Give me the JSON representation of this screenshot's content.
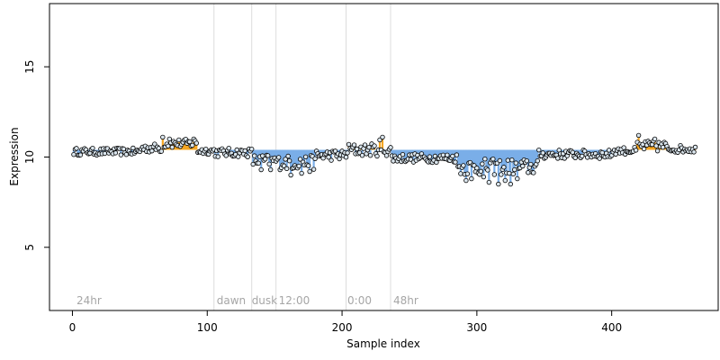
{
  "chart_data": {
    "type": "scatter",
    "xlabel": "Sample index",
    "ylabel": "Expression",
    "xlim": [
      -17,
      479
    ],
    "ylim": [
      1.5,
      18.5
    ],
    "x_ticks": [
      0,
      100,
      200,
      300,
      400
    ],
    "y_ticks": [
      5,
      10,
      15
    ],
    "grid": false,
    "baseline": 10.4,
    "colors": {
      "point_fill": "#dbe6ee",
      "up": "#f5a623",
      "down": "#7aaee8",
      "vertical_line": "#dcdcdc",
      "annotation": "#a6a6a6"
    },
    "vertical_lines": [
      105,
      133,
      151,
      203,
      236
    ],
    "annotations": [
      {
        "x": 3,
        "label": "24hr"
      },
      {
        "x": 107,
        "label": "dawn"
      },
      {
        "x": 133,
        "label": "dusk"
      },
      {
        "x": 153,
        "label": "12:00"
      },
      {
        "x": 204,
        "label": "0:00"
      },
      {
        "x": 238,
        "label": "48hr"
      }
    ],
    "segments": [
      {
        "start": 1,
        "end": 50,
        "level": 10.3,
        "amp": 0.2
      },
      {
        "start": 51,
        "end": 66,
        "level": 10.5,
        "amp": 0.25
      },
      {
        "start": 67,
        "end": 92,
        "level": 10.75,
        "amp": 0.25
      },
      {
        "start": 93,
        "end": 105,
        "level": 10.35,
        "amp": 0.2
      },
      {
        "start": 106,
        "end": 133,
        "level": 10.25,
        "amp": 0.25
      },
      {
        "start": 134,
        "end": 151,
        "level": 9.8,
        "amp": 0.35
      },
      {
        "start": 152,
        "end": 180,
        "level": 9.7,
        "amp": 0.4
      },
      {
        "start": 181,
        "end": 203,
        "level": 10.1,
        "amp": 0.3
      },
      {
        "start": 204,
        "end": 236,
        "level": 10.4,
        "amp": 0.35
      },
      {
        "start": 237,
        "end": 285,
        "level": 9.95,
        "amp": 0.25
      },
      {
        "start": 286,
        "end": 345,
        "level": 9.45,
        "amp": 0.45
      },
      {
        "start": 346,
        "end": 400,
        "level": 10.15,
        "amp": 0.25
      },
      {
        "start": 401,
        "end": 418,
        "level": 10.35,
        "amp": 0.2
      },
      {
        "start": 419,
        "end": 440,
        "level": 10.6,
        "amp": 0.3
      },
      {
        "start": 441,
        "end": 462,
        "level": 10.45,
        "amp": 0.2
      }
    ],
    "outliers": [
      {
        "x": 67,
        "y": 11.1
      },
      {
        "x": 72,
        "y": 11.0
      },
      {
        "x": 90,
        "y": 11.0
      },
      {
        "x": 140,
        "y": 9.3
      },
      {
        "x": 147,
        "y": 9.3
      },
      {
        "x": 162,
        "y": 9.0
      },
      {
        "x": 170,
        "y": 9.1
      },
      {
        "x": 176,
        "y": 9.2
      },
      {
        "x": 230,
        "y": 11.1
      },
      {
        "x": 228,
        "y": 10.95
      },
      {
        "x": 292,
        "y": 8.7
      },
      {
        "x": 296,
        "y": 8.8
      },
      {
        "x": 305,
        "y": 8.9
      },
      {
        "x": 309,
        "y": 8.6
      },
      {
        "x": 316,
        "y": 8.5
      },
      {
        "x": 321,
        "y": 8.7
      },
      {
        "x": 325,
        "y": 8.5
      },
      {
        "x": 330,
        "y": 8.8
      },
      {
        "x": 420,
        "y": 11.2
      },
      {
        "x": 432,
        "y": 11.0
      }
    ]
  }
}
